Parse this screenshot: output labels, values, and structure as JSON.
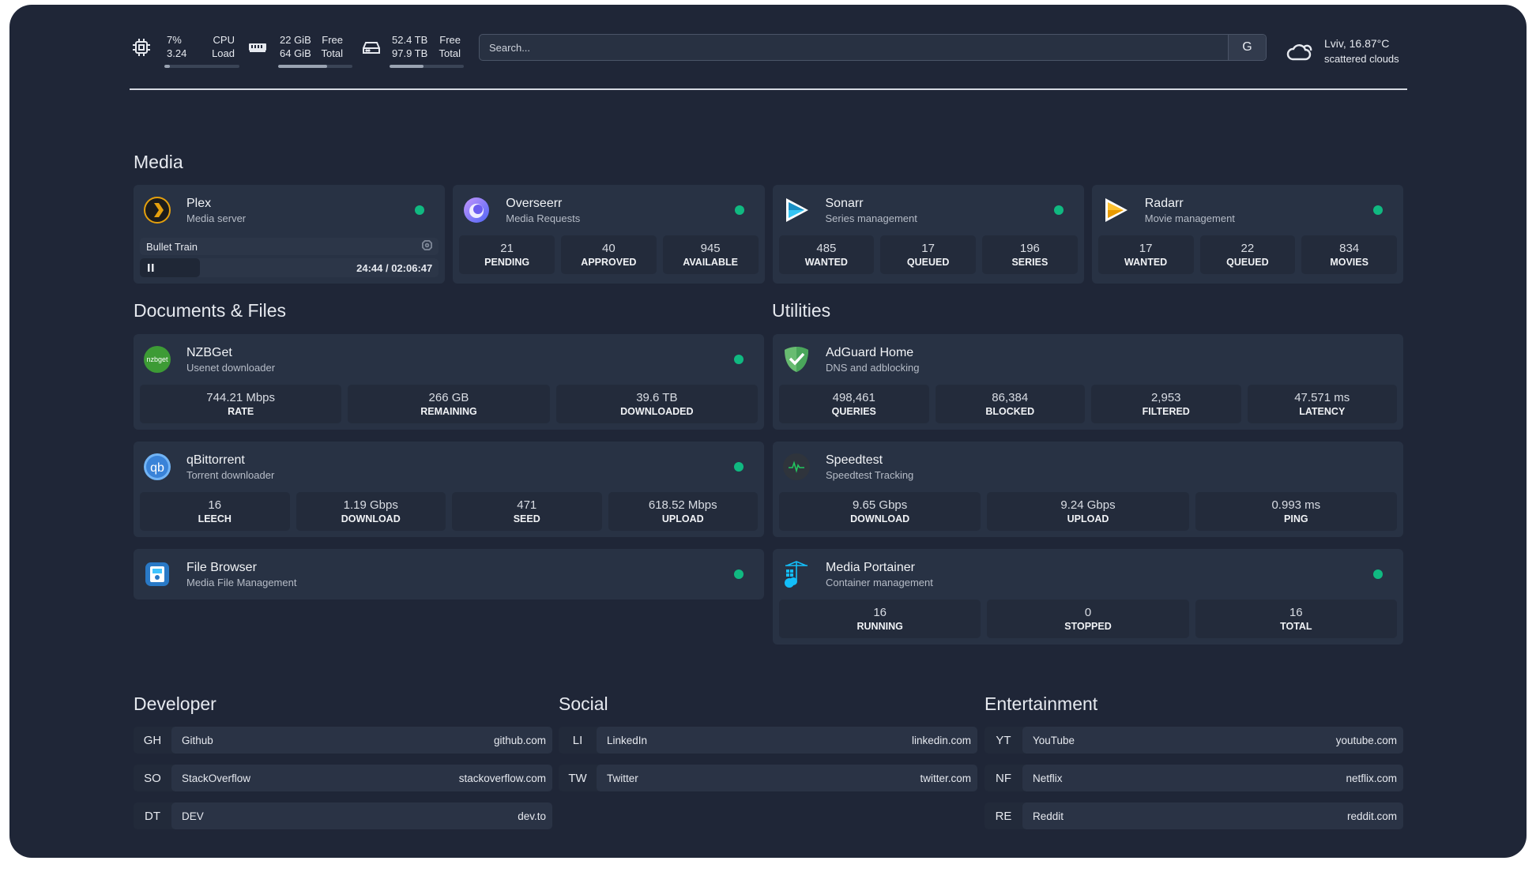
{
  "colors": {
    "background": "#1f2637",
    "card": "#283244",
    "stat": "#232b3b",
    "status_online": "#10b981"
  },
  "system": {
    "cpu": {
      "icon": "cpu-icon",
      "value": "7%",
      "load": "3.24",
      "label1": "CPU",
      "label2": "Load",
      "percent": 7
    },
    "memory": {
      "icon": "memory-icon",
      "free": "22 GiB",
      "total": "64 GiB",
      "label1": "Free",
      "label2": "Total",
      "percent": 66
    },
    "disk": {
      "icon": "disk-icon",
      "free": "52.4 TB",
      "total": "97.9 TB",
      "label1": "Free",
      "label2": "Total",
      "percent": 46
    }
  },
  "search": {
    "placeholder": "Search...",
    "provider": "G"
  },
  "weather": {
    "icon": "cloud-icon",
    "location": "Lviv, 16.87°C",
    "condition": "scattered clouds"
  },
  "sections": {
    "media": "Media",
    "documents": "Documents & Files",
    "utilities": "Utilities",
    "developer": "Developer",
    "social": "Social",
    "entertainment": "Entertainment"
  },
  "media": [
    {
      "name": "Plex",
      "desc": "Media server",
      "icon": "plex",
      "status": true,
      "now_playing": {
        "title": "Bullet Train",
        "time": "24:44 / 02:06:47"
      }
    },
    {
      "name": "Overseerr",
      "desc": "Media Requests",
      "icon": "overseerr",
      "status": true,
      "stats": [
        {
          "v": "21",
          "l": "PENDING"
        },
        {
          "v": "40",
          "l": "APPROVED"
        },
        {
          "v": "945",
          "l": "AVAILABLE"
        }
      ]
    },
    {
      "name": "Sonarr",
      "desc": "Series management",
      "icon": "sonarr",
      "status": true,
      "stats": [
        {
          "v": "485",
          "l": "WANTED"
        },
        {
          "v": "17",
          "l": "QUEUED"
        },
        {
          "v": "196",
          "l": "SERIES"
        }
      ]
    },
    {
      "name": "Radarr",
      "desc": "Movie management",
      "icon": "radarr",
      "status": true,
      "stats": [
        {
          "v": "17",
          "l": "WANTED"
        },
        {
          "v": "22",
          "l": "QUEUED"
        },
        {
          "v": "834",
          "l": "MOVIES"
        }
      ]
    }
  ],
  "documents": [
    {
      "name": "NZBGet",
      "desc": "Usenet downloader",
      "icon": "nzbget",
      "status": true,
      "stats": [
        {
          "v": "744.21 Mbps",
          "l": "RATE"
        },
        {
          "v": "266 GB",
          "l": "REMAINING"
        },
        {
          "v": "39.6 TB",
          "l": "DOWNLOADED"
        }
      ]
    },
    {
      "name": "qBittorrent",
      "desc": "Torrent downloader",
      "icon": "qbittorrent",
      "status": true,
      "stats": [
        {
          "v": "16",
          "l": "LEECH"
        },
        {
          "v": "1.19 Gbps",
          "l": "DOWNLOAD"
        },
        {
          "v": "471",
          "l": "SEED"
        },
        {
          "v": "618.52 Mbps",
          "l": "UPLOAD"
        }
      ]
    },
    {
      "name": "File Browser",
      "desc": "Media File Management",
      "icon": "filebrowser",
      "status": true
    }
  ],
  "utilities": [
    {
      "name": "AdGuard Home",
      "desc": "DNS and adblocking",
      "icon": "adguard",
      "status": false,
      "stats": [
        {
          "v": "498,461",
          "l": "QUERIES"
        },
        {
          "v": "86,384",
          "l": "BLOCKED"
        },
        {
          "v": "2,953",
          "l": "FILTERED"
        },
        {
          "v": "47.571 ms",
          "l": "LATENCY"
        }
      ]
    },
    {
      "name": "Speedtest",
      "desc": "Speedtest Tracking",
      "icon": "speedtest",
      "status": false,
      "stats": [
        {
          "v": "9.65 Gbps",
          "l": "DOWNLOAD"
        },
        {
          "v": "9.24 Gbps",
          "l": "UPLOAD"
        },
        {
          "v": "0.993 ms",
          "l": "PING"
        }
      ]
    },
    {
      "name": "Media Portainer",
      "desc": "Container management",
      "icon": "portainer",
      "status": true,
      "stats": [
        {
          "v": "16",
          "l": "RUNNING"
        },
        {
          "v": "0",
          "l": "STOPPED"
        },
        {
          "v": "16",
          "l": "TOTAL"
        }
      ]
    }
  ],
  "bookmarks": {
    "developer": [
      {
        "abbr": "GH",
        "name": "Github",
        "href": "github.com"
      },
      {
        "abbr": "SO",
        "name": "StackOverflow",
        "href": "stackoverflow.com"
      },
      {
        "abbr": "DT",
        "name": "DEV",
        "href": "dev.to"
      }
    ],
    "social": [
      {
        "abbr": "LI",
        "name": "LinkedIn",
        "href": "linkedin.com"
      },
      {
        "abbr": "TW",
        "name": "Twitter",
        "href": "twitter.com"
      }
    ],
    "entertainment": [
      {
        "abbr": "YT",
        "name": "YouTube",
        "href": "youtube.com"
      },
      {
        "abbr": "NF",
        "name": "Netflix",
        "href": "netflix.com"
      },
      {
        "abbr": "RE",
        "name": "Reddit",
        "href": "reddit.com"
      }
    ]
  }
}
